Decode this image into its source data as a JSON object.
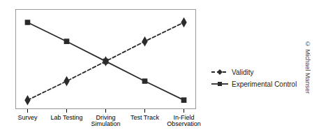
{
  "chart_data": {
    "type": "line",
    "categories": [
      "Survey",
      "Lab Testing",
      "Driving\nSimulation",
      "Test Track",
      "In-Field\nObservation"
    ],
    "series": [
      {
        "name": "Validity",
        "color": "#2b2b2b",
        "marker": "diamond",
        "line_style": "dashed",
        "values": [
          0.05,
          0.27,
          0.5,
          0.73,
          0.95
        ]
      },
      {
        "name": "Experimental Control",
        "color": "#2b2b2b",
        "marker": "square",
        "line_style": "solid",
        "values": [
          0.95,
          0.73,
          0.5,
          0.27,
          0.05
        ]
      }
    ],
    "ylim": [
      -0.05,
      1.1
    ],
    "tick_labels": "x",
    "legend": "right",
    "annotations": [
      "© Michael Manser"
    ]
  }
}
